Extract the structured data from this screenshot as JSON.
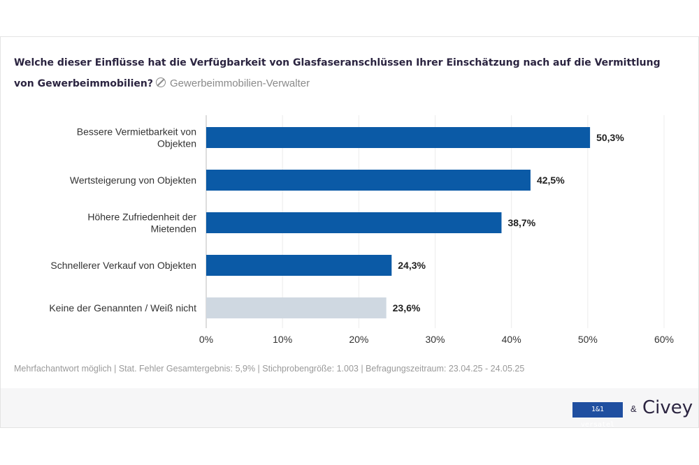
{
  "title": "Welche dieser Einflüsse hat die Verfügbarkeit von Glasfaseranschlüssen Ihrer Einschätzung nach auf die Vermittlung von Gewerbeimmobilien?",
  "subtitle": "Gewerbeimmobilien-Verwalter",
  "footnote": "Mehrfachantwort möglich | Stat. Fehler Gesamtergebnis: 5,9% | Stichprobengröße: 1.003 | Befragungszeitraum: 23.04.25 - 24.05.25",
  "logos": {
    "partner": "1&1 versatel",
    "amp": "&",
    "brand": "Civey"
  },
  "colors": {
    "primary": "#0b5aa6",
    "neutral": "#cfd8e1"
  },
  "chart_data": {
    "type": "bar",
    "orientation": "horizontal",
    "categories": [
      "Bessere Vermietbarkeit von Objekten",
      "Wertsteigerung von Objekten",
      "Höhere Zufriedenheit der Mietenden",
      "Schnellerer Verkauf von Objekten",
      "Keine der Genannten / Weiß nicht"
    ],
    "values": [
      50.3,
      42.5,
      38.7,
      24.3,
      23.6
    ],
    "labels": [
      "50,3%",
      "42,5%",
      "38,7%",
      "24,3%",
      "23,6%"
    ],
    "highlight": [
      true,
      true,
      true,
      true,
      false
    ],
    "xlim": [
      0,
      60
    ],
    "xticks": [
      "0%",
      "10%",
      "20%",
      "30%",
      "40%",
      "50%",
      "60%"
    ],
    "grid": true
  }
}
